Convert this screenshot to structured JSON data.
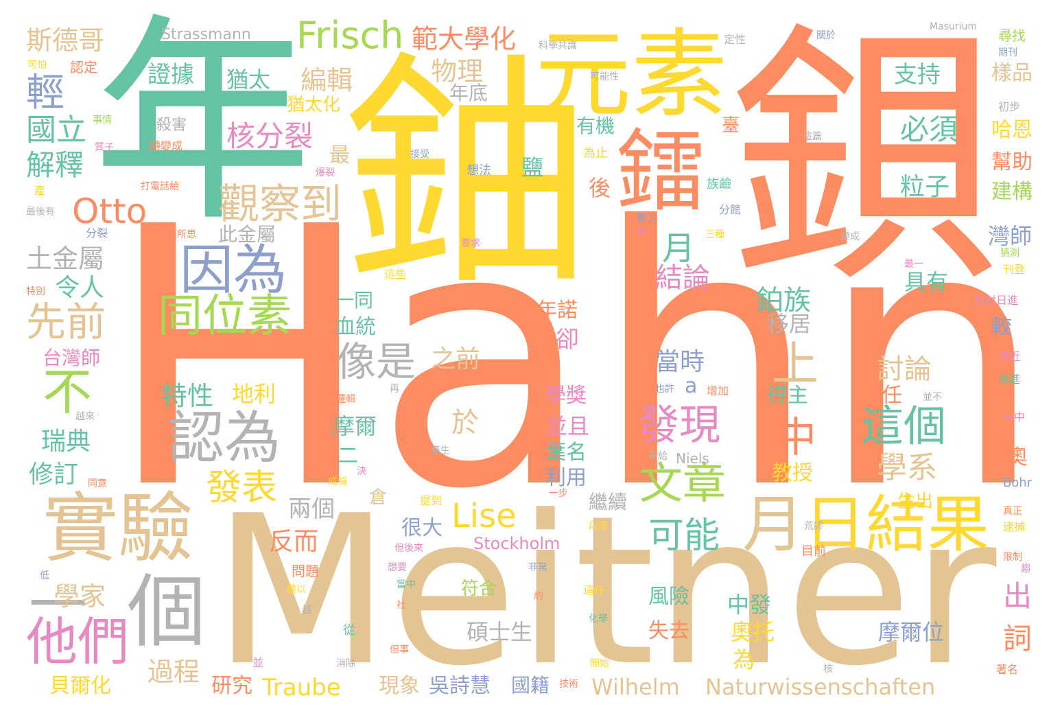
{
  "palette": {
    "orange": "#fc8d62",
    "yellow": "#ffd92f",
    "green": "#66c2a5",
    "tan": "#e5c494",
    "blue": "#8da0cb",
    "pink": "#e78ac3",
    "lime": "#a6d854",
    "gray": "#b3b3b3"
  },
  "words": [
    {
      "text": "Hahn",
      "color": "orange"
    },
    {
      "text": "Meitner",
      "color": "tan"
    },
    {
      "text": "鈾",
      "color": "yellow"
    },
    {
      "text": "鋇",
      "color": "orange"
    },
    {
      "text": "年",
      "color": "green"
    },
    {
      "text": "元素",
      "color": "yellow"
    },
    {
      "text": "鐳",
      "color": "orange"
    },
    {
      "text": "實驗",
      "color": "tan"
    },
    {
      "text": "個",
      "color": "gray"
    },
    {
      "text": "一",
      "color": "gray"
    },
    {
      "text": "日結果",
      "color": "yellow"
    },
    {
      "text": "月",
      "color": "tan"
    },
    {
      "text": "因為",
      "color": "blue"
    },
    {
      "text": "認為",
      "color": "gray"
    },
    {
      "text": "他們",
      "color": "pink"
    },
    {
      "text": "同位素",
      "color": "lime"
    },
    {
      "text": "觀察到",
      "color": "tan"
    },
    {
      "text": "Frisch",
      "color": "lime"
    },
    {
      "text": "Otto",
      "color": "orange"
    },
    {
      "text": "Lise",
      "color": "yellow"
    },
    {
      "text": "文章",
      "color": "lime"
    },
    {
      "text": "發現",
      "color": "pink"
    },
    {
      "text": "這個",
      "color": "green"
    },
    {
      "text": "可能",
      "color": "green"
    },
    {
      "text": "像是",
      "color": "gray"
    },
    {
      "text": "先前",
      "color": "tan"
    },
    {
      "text": "發表",
      "color": "yellow"
    },
    {
      "text": "上",
      "color": "tan"
    },
    {
      "text": "中",
      "color": "orange"
    },
    {
      "text": "不",
      "color": "lime"
    },
    {
      "text": "範大學化",
      "color": "orange"
    },
    {
      "text": "斯德哥",
      "color": "tan"
    },
    {
      "text": "物理",
      "color": "tan"
    },
    {
      "text": "編輯",
      "color": "tan"
    },
    {
      "text": "核分裂",
      "color": "pink"
    },
    {
      "text": "證據",
      "color": "green"
    },
    {
      "text": "猶太",
      "color": "green"
    },
    {
      "text": "輕",
      "color": "blue"
    },
    {
      "text": "國立",
      "color": "green"
    },
    {
      "text": "解釋",
      "color": "green"
    },
    {
      "text": "月",
      "color": "green"
    },
    {
      "text": "必須",
      "color": "green"
    },
    {
      "text": "支持",
      "color": "green"
    },
    {
      "text": "粒子",
      "color": "green"
    },
    {
      "text": "結論",
      "color": "pink"
    },
    {
      "text": "鉑族",
      "color": "green"
    },
    {
      "text": "學系",
      "color": "tan"
    },
    {
      "text": "討論",
      "color": "tan"
    },
    {
      "text": "特性",
      "color": "green"
    },
    {
      "text": "地利",
      "color": "yellow"
    },
    {
      "text": "瑞典",
      "color": "green"
    },
    {
      "text": "修訂",
      "color": "green"
    },
    {
      "text": "學家",
      "color": "tan"
    },
    {
      "text": "過程",
      "color": "tan"
    },
    {
      "text": "貝爾化",
      "color": "yellow"
    },
    {
      "text": "研究",
      "color": "orange"
    },
    {
      "text": "Traube",
      "color": "yellow"
    },
    {
      "text": "現象",
      "color": "tan"
    },
    {
      "text": "吳詩慧",
      "color": "blue"
    },
    {
      "text": "國籍",
      "color": "blue"
    },
    {
      "text": "Wilhelm",
      "color": "tan"
    },
    {
      "text": "Naturwissenschaften",
      "color": "tan"
    },
    {
      "text": "Stockholm",
      "color": "pink"
    },
    {
      "text": "Strassmann",
      "color": "gray"
    },
    {
      "text": "兩個",
      "color": "gray"
    },
    {
      "text": "反而",
      "color": "orange"
    },
    {
      "text": "碩士生",
      "color": "gray"
    },
    {
      "text": "奧托",
      "color": "yellow"
    },
    {
      "text": "為",
      "color": "yellow"
    },
    {
      "text": "中發",
      "color": "green"
    },
    {
      "text": "風險",
      "color": "green"
    },
    {
      "text": "失去",
      "color": "orange"
    },
    {
      "text": "摩爾位",
      "color": "blue"
    },
    {
      "text": "詞",
      "color": "orange"
    },
    {
      "text": "出",
      "color": "pink"
    },
    {
      "text": "當時",
      "color": "blue"
    },
    {
      "text": "a",
      "color": "blue"
    },
    {
      "text": "土金屬",
      "color": "gray"
    },
    {
      "text": "令人",
      "color": "green"
    },
    {
      "text": "台灣師",
      "color": "pink"
    },
    {
      "text": "之前",
      "color": "tan"
    },
    {
      "text": "於",
      "color": "tan"
    },
    {
      "text": "卻",
      "color": "pink"
    },
    {
      "text": "年諾",
      "color": "orange"
    },
    {
      "text": "血統",
      "color": "green"
    },
    {
      "text": "一同",
      "color": "green"
    },
    {
      "text": "此金屬",
      "color": "gray"
    },
    {
      "text": "移居",
      "color": "gray"
    },
    {
      "text": "具有",
      "color": "green"
    },
    {
      "text": "較",
      "color": "blue"
    },
    {
      "text": "灣師",
      "color": "blue"
    },
    {
      "text": "建構",
      "color": "lime"
    },
    {
      "text": "幫助",
      "color": "orange"
    },
    {
      "text": "哈恩",
      "color": "yellow"
    },
    {
      "text": "樣品",
      "color": "tan"
    },
    {
      "text": "年底",
      "color": "gray"
    },
    {
      "text": "有機",
      "color": "green"
    },
    {
      "text": "臺",
      "color": "orange"
    },
    {
      "text": "鹽",
      "color": "green"
    },
    {
      "text": "猶太化",
      "color": "yellow"
    },
    {
      "text": "最",
      "color": "tan"
    },
    {
      "text": "後",
      "color": "orange"
    },
    {
      "text": "學獎",
      "color": "pink"
    },
    {
      "text": "並且",
      "color": "pink"
    },
    {
      "text": "葉名",
      "color": "green"
    },
    {
      "text": "利用",
      "color": "blue"
    },
    {
      "text": "繼續",
      "color": "gray"
    },
    {
      "text": "教授",
      "color": "yellow"
    },
    {
      "text": "摩爾",
      "color": "green"
    },
    {
      "text": "得主",
      "color": "green"
    },
    {
      "text": "責任",
      "color": "orange"
    },
    {
      "text": "很大",
      "color": "blue"
    },
    {
      "text": "倉",
      "color": "tan"
    },
    {
      "text": "二",
      "color": "green"
    },
    {
      "text": "奧",
      "color": "orange"
    },
    {
      "text": "生出",
      "color": "yellow"
    },
    {
      "text": "符合",
      "color": "lime"
    },
    {
      "text": "Masurium",
      "color": "gray"
    },
    {
      "text": "Niels",
      "color": "gray"
    },
    {
      "text": "Bohr",
      "color": "blue"
    },
    {
      "text": "殺害",
      "color": "gray"
    },
    {
      "text": "轉變成",
      "color": "orange"
    },
    {
      "text": "事情",
      "color": "lime"
    },
    {
      "text": "質子",
      "color": "pink"
    },
    {
      "text": "認定",
      "color": "orange"
    },
    {
      "text": "可怕",
      "color": "yellow"
    },
    {
      "text": "科學共識",
      "color": "gray"
    },
    {
      "text": "定性",
      "color": "gray"
    },
    {
      "text": "關於",
      "color": "blue"
    },
    {
      "text": "尋找",
      "color": "lime"
    },
    {
      "text": "期刊",
      "color": "blue"
    },
    {
      "text": "可能性",
      "color": "gray"
    },
    {
      "text": "初步",
      "color": "gray"
    },
    {
      "text": "這篇",
      "color": "gray"
    },
    {
      "text": "接受",
      "color": "blue"
    },
    {
      "text": "想法",
      "color": "blue"
    },
    {
      "text": "為止",
      "color": "yellow"
    },
    {
      "text": "族鹼",
      "color": "green"
    },
    {
      "text": "打電話給",
      "color": "orange"
    },
    {
      "text": "產",
      "color": "yellow"
    },
    {
      "text": "最後有",
      "color": "gray"
    },
    {
      "text": "爆裂",
      "color": "pink"
    },
    {
      "text": "分館",
      "color": "blue"
    },
    {
      "text": "實上",
      "color": "blue"
    },
    {
      "text": "稱",
      "color": "pink"
    },
    {
      "text": "三種",
      "color": "yellow"
    },
    {
      "text": "變成",
      "color": "gray"
    },
    {
      "text": "分裂",
      "color": "blue"
    },
    {
      "text": "匪夷所思",
      "color": "orange"
    },
    {
      "text": "要求",
      "color": "pink"
    },
    {
      "text": "特別",
      "color": "orange"
    },
    {
      "text": "這些",
      "color": "yellow"
    },
    {
      "text": "最一",
      "color": "pink"
    },
    {
      "text": "猜測",
      "color": "lime"
    },
    {
      "text": "刊登",
      "color": "yellow"
    },
    {
      "text": "放射日進",
      "color": "pink"
    },
    {
      "text": "接近",
      "color": "pink"
    },
    {
      "text": "改進",
      "color": "green"
    },
    {
      "text": "一篇",
      "color": "orange"
    },
    {
      "text": "並不",
      "color": "gray"
    },
    {
      "text": "信中",
      "color": "pink"
    },
    {
      "text": "越來",
      "color": "gray"
    },
    {
      "text": "邏輯",
      "color": "orange"
    },
    {
      "text": "再",
      "color": "gray"
    },
    {
      "text": "也許",
      "color": "blue"
    },
    {
      "text": "增加",
      "color": "orange"
    },
    {
      "text": "寫給",
      "color": "gray"
    },
    {
      "text": "產生",
      "color": "gray"
    },
    {
      "text": "同意",
      "color": "orange"
    },
    {
      "text": "成福",
      "color": "yellow"
    },
    {
      "text": "決",
      "color": "pink"
    },
    {
      "text": "提到",
      "color": "yellow"
    },
    {
      "text": "一步",
      "color": "orange"
    },
    {
      "text": "段落",
      "color": "yellow"
    },
    {
      "text": "荒謬",
      "color": "gray"
    },
    {
      "text": "真正",
      "color": "orange"
    },
    {
      "text": "逮捕",
      "color": "yellow"
    },
    {
      "text": "但後來",
      "color": "pink"
    },
    {
      "text": "目前",
      "color": "orange"
    },
    {
      "text": "限制",
      "color": "orange"
    },
    {
      "text": "想要",
      "color": "pink"
    },
    {
      "text": "非常",
      "color": "blue"
    },
    {
      "text": "趨",
      "color": "pink"
    },
    {
      "text": "問題",
      "color": "orange"
    },
    {
      "text": "低",
      "color": "blue"
    },
    {
      "text": "當中",
      "color": "green"
    },
    {
      "text": "難以",
      "color": "yellow"
    },
    {
      "text": "約",
      "color": "orange"
    },
    {
      "text": "這件",
      "color": "yellow"
    },
    {
      "text": "社",
      "color": "orange"
    },
    {
      "text": "越",
      "color": "gray"
    },
    {
      "text": "化學",
      "color": "green"
    },
    {
      "text": "從",
      "color": "green"
    },
    {
      "text": "但事",
      "color": "orange"
    },
    {
      "text": "並",
      "color": "pink"
    },
    {
      "text": "消除",
      "color": "gray"
    },
    {
      "text": "開始",
      "color": "yellow"
    },
    {
      "text": "核",
      "color": "gray"
    },
    {
      "text": "著名",
      "color": "orange"
    },
    {
      "text": "技術",
      "color": "orange"
    }
  ]
}
